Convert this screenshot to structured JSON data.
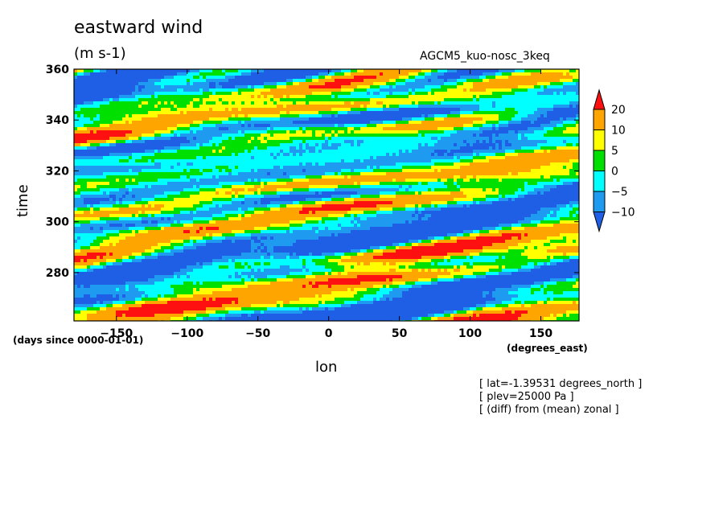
{
  "title": "eastward wind",
  "units": "(m s-1)",
  "run_label": "AGCM5_kuo-nosc_3keq",
  "notes": [
    "[ lat=-1.39531 degrees_north ]",
    "[ plev=25000 Pa ]",
    "[ (diff) from (mean) zonal ]"
  ],
  "chart_data": {
    "type": "heatmap",
    "title": "eastward wind",
    "xlabel": "lon",
    "ylabel": "time",
    "x_units": "(degrees_east)",
    "y_units": "(days since 0000-01-01)",
    "xlim": [
      -180,
      177
    ],
    "ylim": [
      261,
      360
    ],
    "x_ticks": [
      -150,
      -100,
      -50,
      0,
      50,
      100,
      150
    ],
    "y_ticks": [
      280,
      300,
      320,
      340,
      360
    ],
    "colorbar": {
      "levels": [
        -10,
        -5,
        0,
        5,
        10,
        20
      ],
      "colors": [
        "#1f5fe6",
        "#1e9bf0",
        "#00ffff",
        "#00e000",
        "#ffff00",
        "#ffa500",
        "#ff1010"
      ],
      "extend": "both"
    }
  }
}
